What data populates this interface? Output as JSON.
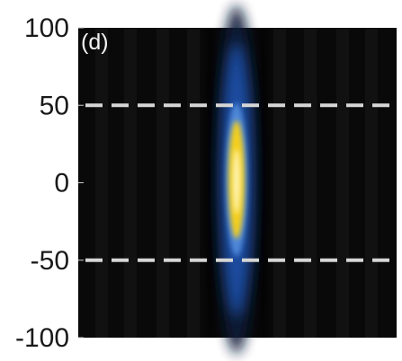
{
  "chart_data": {
    "type": "heatmap",
    "title": "",
    "panel_label": "(d)",
    "xlabel": "",
    "ylabel": "",
    "ylim": [
      -100,
      100
    ],
    "yticks": [
      100,
      50,
      0,
      -50,
      -100
    ],
    "ytick_labels": [
      "100",
      "50",
      "0",
      "-50",
      "-100"
    ],
    "x_ticks_visible": false,
    "grid": false,
    "colormap": [
      "#050505",
      "#0a1a3a",
      "#1d4fa8",
      "#4f88d8",
      "#c6c98a",
      "#f4cf1f",
      "#fff6c0"
    ],
    "background_color": "#090909",
    "hot_spot": {
      "peak_y": 2,
      "core_half_height": 38,
      "glow_half_height": 90
    },
    "reference_lines": {
      "style": "dashed",
      "color": "#d6d6d6",
      "y_values": [
        50,
        -50
      ]
    }
  }
}
